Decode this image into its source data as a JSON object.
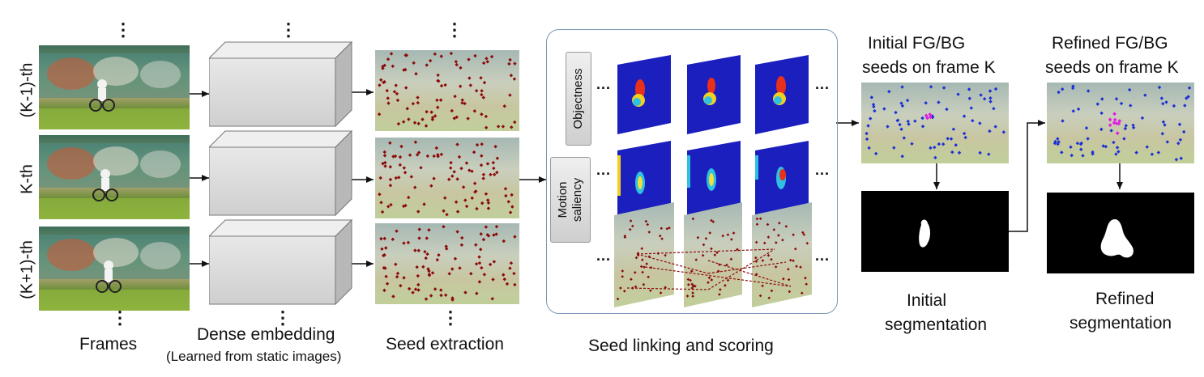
{
  "rows": [
    "(K-1)-th",
    "K-th",
    "(K+1)-th"
  ],
  "ellipsis_vertical": "⋮",
  "ellipsis_horizontal": "...",
  "labels": {
    "frames": "Frames",
    "dense_embedding": "Dense embedding",
    "dense_embedding_sub": "(Learned from static images)",
    "seed_extraction": "Seed extraction",
    "seed_linking": "Seed linking and scoring",
    "objectness": "Objectness",
    "motion_saliency_1": "Motion",
    "motion_saliency_2": "saliency",
    "initial_seeds_1": "Initial FG/BG",
    "initial_seeds_2": "seeds on frame K",
    "refined_seeds_1": "Refined FG/BG",
    "refined_seeds_2": "seeds on frame K",
    "initial_seg_1": "Initial",
    "initial_seg_2": "segmentation",
    "refined_seg_1": "Refined",
    "refined_seg_2": "segmentation"
  },
  "colors": {
    "seed_red": "#8b0a0a",
    "seed_blue": "#1a2fd6",
    "seed_magenta": "#e020e0",
    "heat_bg": "#1a1fbe",
    "panel_border": "#7a98b5",
    "box_face": "#dcdcdc"
  }
}
